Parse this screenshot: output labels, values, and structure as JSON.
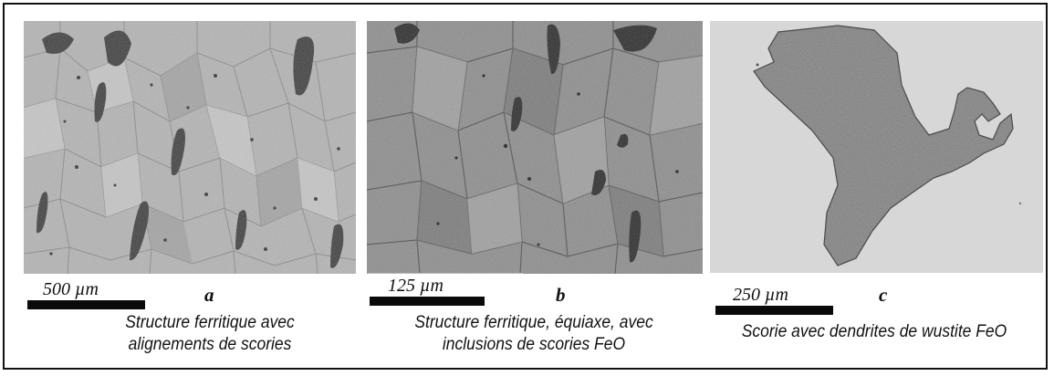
{
  "panels": [
    {
      "letter": "a",
      "scale": "500 µm",
      "caption_line1": "Structure ferritique avec",
      "caption_line2": "alignements de scories"
    },
    {
      "letter": "b",
      "scale": "125 µm",
      "caption_line1": "Structure ferritique, équiaxe, avec",
      "caption_line2": "inclusions de scories FeO"
    },
    {
      "letter": "c",
      "scale": "250 µm",
      "caption_line1": "Scorie avec dendrites de wustite FeO"
    }
  ]
}
